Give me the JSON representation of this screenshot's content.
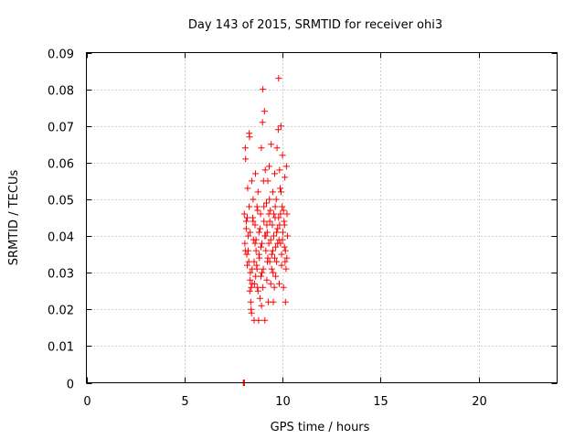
{
  "chart_data": {
    "type": "scatter",
    "title": "Day 143 of 2015, SRMTID for receiver ohi3",
    "xlabel": "GPS time / hours",
    "ylabel": "SRMTID / TECUs",
    "xlim": [
      0,
      24
    ],
    "ylim": [
      0,
      0.09
    ],
    "xticks": [
      0,
      5,
      10,
      15,
      20
    ],
    "xtick_labels": [
      "0",
      "5",
      "10",
      "15",
      "20"
    ],
    "yticks": [
      0,
      0.01,
      0.02,
      0.03,
      0.04,
      0.05,
      0.06,
      0.07,
      0.08,
      0.09
    ],
    "ytick_labels": [
      "0",
      "0.01",
      "0.02",
      "0.03",
      "0.04",
      "0.05",
      "0.06",
      "0.07",
      "0.08",
      "0.09"
    ],
    "grid": true,
    "marker": "plus",
    "color": "#ff0000",
    "series": [
      {
        "name": "SRMTID",
        "points": [
          [
            8.0,
            0.0
          ],
          [
            8.02,
            0.0
          ],
          [
            8.04,
            0.0
          ],
          [
            8.06,
            0.0
          ],
          [
            8.05,
            0.046
          ],
          [
            8.08,
            0.038
          ],
          [
            8.1,
            0.064
          ],
          [
            8.12,
            0.061
          ],
          [
            8.15,
            0.042
          ],
          [
            8.18,
            0.035
          ],
          [
            8.2,
            0.045
          ],
          [
            8.22,
            0.053
          ],
          [
            8.25,
            0.04
          ],
          [
            8.28,
            0.033
          ],
          [
            8.3,
            0.068
          ],
          [
            8.32,
            0.067
          ],
          [
            8.35,
            0.028
          ],
          [
            8.36,
            0.03
          ],
          [
            8.38,
            0.022
          ],
          [
            8.4,
            0.02
          ],
          [
            8.42,
            0.019
          ],
          [
            8.45,
            0.031
          ],
          [
            8.48,
            0.045
          ],
          [
            8.5,
            0.05
          ],
          [
            8.52,
            0.039
          ],
          [
            8.55,
            0.017
          ],
          [
            8.57,
            0.027
          ],
          [
            8.6,
            0.043
          ],
          [
            8.62,
            0.057
          ],
          [
            8.65,
            0.036
          ],
          [
            8.68,
            0.032
          ],
          [
            8.7,
            0.048
          ],
          [
            8.72,
            0.026
          ],
          [
            8.75,
            0.052
          ],
          [
            8.78,
            0.017
          ],
          [
            8.8,
            0.041
          ],
          [
            8.82,
            0.034
          ],
          [
            8.85,
            0.023
          ],
          [
            8.88,
            0.046
          ],
          [
            8.9,
            0.029
          ],
          [
            8.92,
            0.064
          ],
          [
            8.95,
            0.038
          ],
          [
            8.98,
            0.071
          ],
          [
            9.0,
            0.08
          ],
          [
            9.02,
            0.031
          ],
          [
            9.05,
            0.044
          ],
          [
            9.08,
            0.074
          ],
          [
            9.1,
            0.017
          ],
          [
            9.12,
            0.058
          ],
          [
            9.15,
            0.036
          ],
          [
            9.18,
            0.049
          ],
          [
            9.2,
            0.028
          ],
          [
            9.22,
            0.041
          ],
          [
            9.25,
            0.055
          ],
          [
            9.28,
            0.022
          ],
          [
            9.3,
            0.038
          ],
          [
            9.32,
            0.059
          ],
          [
            9.35,
            0.033
          ],
          [
            9.38,
            0.047
          ],
          [
            9.4,
            0.027
          ],
          [
            9.42,
            0.065
          ],
          [
            9.45,
            0.035
          ],
          [
            9.48,
            0.043
          ],
          [
            9.5,
            0.052
          ],
          [
            9.52,
            0.03
          ],
          [
            9.55,
            0.04
          ],
          [
            9.58,
            0.026
          ],
          [
            9.6,
            0.057
          ],
          [
            9.62,
            0.045
          ],
          [
            9.65,
            0.037
          ],
          [
            9.68,
            0.05
          ],
          [
            9.7,
            0.033
          ],
          [
            9.72,
            0.064
          ],
          [
            9.75,
            0.042
          ],
          [
            9.78,
            0.069
          ],
          [
            9.8,
            0.083
          ],
          [
            9.82,
            0.039
          ],
          [
            9.85,
            0.058
          ],
          [
            9.88,
            0.053
          ],
          [
            9.9,
            0.046
          ],
          [
            9.92,
            0.07
          ],
          [
            9.95,
            0.035
          ],
          [
            9.98,
            0.048
          ],
          [
            10.0,
            0.062
          ],
          [
            10.02,
            0.041
          ],
          [
            10.05,
            0.026
          ],
          [
            10.08,
            0.044
          ],
          [
            10.1,
            0.037
          ],
          [
            10.12,
            0.056
          ],
          [
            10.15,
            0.022
          ],
          [
            10.18,
            0.031
          ],
          [
            10.2,
            0.059
          ],
          [
            10.22,
            0.034
          ],
          [
            10.25,
            0.04
          ],
          [
            8.15,
            0.044
          ],
          [
            8.25,
            0.036
          ],
          [
            8.35,
            0.041
          ],
          [
            8.45,
            0.027
          ],
          [
            8.55,
            0.033
          ],
          [
            8.65,
            0.039
          ],
          [
            8.75,
            0.025
          ],
          [
            8.85,
            0.042
          ],
          [
            8.95,
            0.03
          ],
          [
            9.05,
            0.048
          ],
          [
            9.15,
            0.04
          ],
          [
            9.25,
            0.034
          ],
          [
            9.35,
            0.044
          ],
          [
            9.45,
            0.031
          ],
          [
            9.55,
            0.046
          ],
          [
            9.65,
            0.029
          ],
          [
            9.75,
            0.038
          ],
          [
            9.85,
            0.043
          ],
          [
            9.95,
            0.032
          ],
          [
            10.05,
            0.047
          ],
          [
            10.15,
            0.036
          ],
          [
            8.2,
            0.032
          ],
          [
            8.4,
            0.026
          ],
          [
            8.6,
            0.038
          ],
          [
            8.8,
            0.035
          ],
          [
            9.0,
            0.026
          ],
          [
            9.2,
            0.043
          ],
          [
            9.4,
            0.039
          ],
          [
            9.6,
            0.034
          ],
          [
            9.8,
            0.045
          ],
          [
            10.0,
            0.039
          ],
          [
            8.3,
            0.048
          ],
          [
            8.5,
            0.044
          ],
          [
            8.7,
            0.031
          ],
          [
            8.9,
            0.037
          ],
          [
            9.1,
            0.04
          ],
          [
            9.3,
            0.046
          ],
          [
            9.5,
            0.036
          ],
          [
            9.7,
            0.041
          ],
          [
            9.9,
            0.038
          ],
          [
            10.1,
            0.043
          ],
          [
            8.1,
            0.036
          ],
          [
            8.33,
            0.025
          ],
          [
            8.63,
            0.029
          ],
          [
            8.93,
            0.021
          ],
          [
            9.23,
            0.033
          ],
          [
            9.53,
            0.022
          ],
          [
            9.83,
            0.027
          ],
          [
            10.13,
            0.033
          ],
          [
            8.43,
            0.055
          ],
          [
            8.73,
            0.047
          ],
          [
            9.03,
            0.055
          ],
          [
            9.33,
            0.05
          ],
          [
            9.63,
            0.048
          ],
          [
            9.93,
            0.052
          ],
          [
            10.23,
            0.046
          ]
        ]
      }
    ]
  }
}
